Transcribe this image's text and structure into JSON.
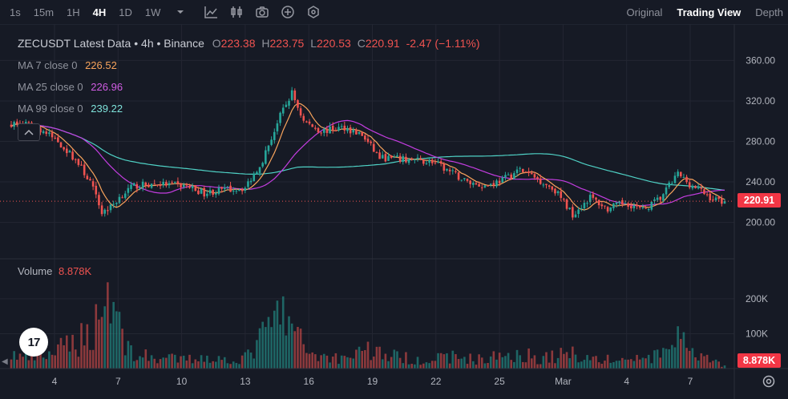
{
  "toolbar": {
    "timeframes": [
      "1s",
      "15m",
      "1H",
      "4H",
      "1D",
      "1W"
    ],
    "active_timeframe": "4H",
    "tools": [
      "dropdown-icon",
      "indicators-icon",
      "candle-type-icon",
      "camera-icon",
      "plus-circle-icon",
      "settings-hex-icon"
    ],
    "views": [
      "Original",
      "Trading View",
      "Depth"
    ],
    "active_view": "Trading View"
  },
  "legend": {
    "symbol": "ZECUSDT Latest Data • 4h • Binance",
    "o_label": "O",
    "o_value": "223.38",
    "h_label": "H",
    "h_value": "223.75",
    "l_label": "L",
    "l_value": "220.53",
    "c_label": "C",
    "c_value": "220.91",
    "change": "-2.47 (−1.11%)"
  },
  "ma": [
    {
      "name": "MA 7 close 0",
      "value": "226.52",
      "color": "#f7a35c"
    },
    {
      "name": "MA 25 close 0",
      "value": "226.96",
      "color": "#c33de0"
    },
    {
      "name": "MA 99 close 0",
      "value": "239.22",
      "color": "#4fd1c5"
    }
  ],
  "volume": {
    "label": "Volume",
    "value": "8.878K",
    "badge": "8.878K"
  },
  "price_badge": "220.91",
  "logo_text": "17",
  "colors": {
    "up": "#26a69a",
    "down": "#ef5350",
    "bg": "#161a25",
    "grid": "#232632"
  },
  "chart_data": {
    "type": "candlestick",
    "price_axis": {
      "ticks": [
        200,
        240,
        280,
        320,
        360
      ],
      "tick_labels": [
        "200.00",
        "240.00",
        "280.00",
        "320.00",
        "360.00"
      ],
      "range": [
        168,
        392
      ]
    },
    "volume_axis": {
      "ticks": [
        100000,
        200000
      ],
      "tick_labels": [
        "100K",
        "200K"
      ],
      "range": [
        0,
        310000
      ]
    },
    "x_ticks": [
      "4",
      "7",
      "10",
      "13",
      "16",
      "19",
      "22",
      "25",
      "Mar",
      "4",
      "7"
    ],
    "last_price": 220.91,
    "last_volume": 8878,
    "anchors": [
      {
        "i": 0,
        "p": 298,
        "v": 40000
      },
      {
        "i": 6,
        "p": 296,
        "v": 30000
      },
      {
        "i": 10,
        "p": 292,
        "v": 35000
      },
      {
        "i": 16,
        "p": 280,
        "v": 50000
      },
      {
        "i": 22,
        "p": 262,
        "v": 80000
      },
      {
        "i": 27,
        "p": 240,
        "v": 100000
      },
      {
        "i": 31,
        "p": 210,
        "v": 180000
      },
      {
        "i": 34,
        "p": 215,
        "v": 230000
      },
      {
        "i": 38,
        "p": 228,
        "v": 90000
      },
      {
        "i": 42,
        "p": 236,
        "v": 40000
      },
      {
        "i": 50,
        "p": 238,
        "v": 30000
      },
      {
        "i": 60,
        "p": 236,
        "v": 25000
      },
      {
        "i": 66,
        "p": 229,
        "v": 35000
      },
      {
        "i": 72,
        "p": 232,
        "v": 25000
      },
      {
        "i": 80,
        "p": 234,
        "v": 30000
      },
      {
        "i": 86,
        "p": 262,
        "v": 90000
      },
      {
        "i": 92,
        "p": 305,
        "v": 160000
      },
      {
        "i": 96,
        "p": 328,
        "v": 120000
      },
      {
        "i": 100,
        "p": 300,
        "v": 60000
      },
      {
        "i": 106,
        "p": 290,
        "v": 35000
      },
      {
        "i": 114,
        "p": 294,
        "v": 30000
      },
      {
        "i": 120,
        "p": 286,
        "v": 60000
      },
      {
        "i": 126,
        "p": 264,
        "v": 45000
      },
      {
        "i": 134,
        "p": 262,
        "v": 30000
      },
      {
        "i": 144,
        "p": 260,
        "v": 25000
      },
      {
        "i": 150,
        "p": 250,
        "v": 35000
      },
      {
        "i": 156,
        "p": 240,
        "v": 30000
      },
      {
        "i": 162,
        "p": 236,
        "v": 25000
      },
      {
        "i": 168,
        "p": 242,
        "v": 40000
      },
      {
        "i": 174,
        "p": 252,
        "v": 45000
      },
      {
        "i": 180,
        "p": 243,
        "v": 30000
      },
      {
        "i": 186,
        "p": 232,
        "v": 35000
      },
      {
        "i": 192,
        "p": 208,
        "v": 45000
      },
      {
        "i": 198,
        "p": 225,
        "v": 30000
      },
      {
        "i": 204,
        "p": 213,
        "v": 25000
      },
      {
        "i": 210,
        "p": 220,
        "v": 25000
      },
      {
        "i": 216,
        "p": 212,
        "v": 30000
      },
      {
        "i": 222,
        "p": 224,
        "v": 35000
      },
      {
        "i": 228,
        "p": 248,
        "v": 100000
      },
      {
        "i": 232,
        "p": 238,
        "v": 40000
      },
      {
        "i": 240,
        "p": 223,
        "v": 20000
      },
      {
        "i": 244,
        "p": 220.91,
        "v": 8878
      }
    ],
    "count": 245
  }
}
